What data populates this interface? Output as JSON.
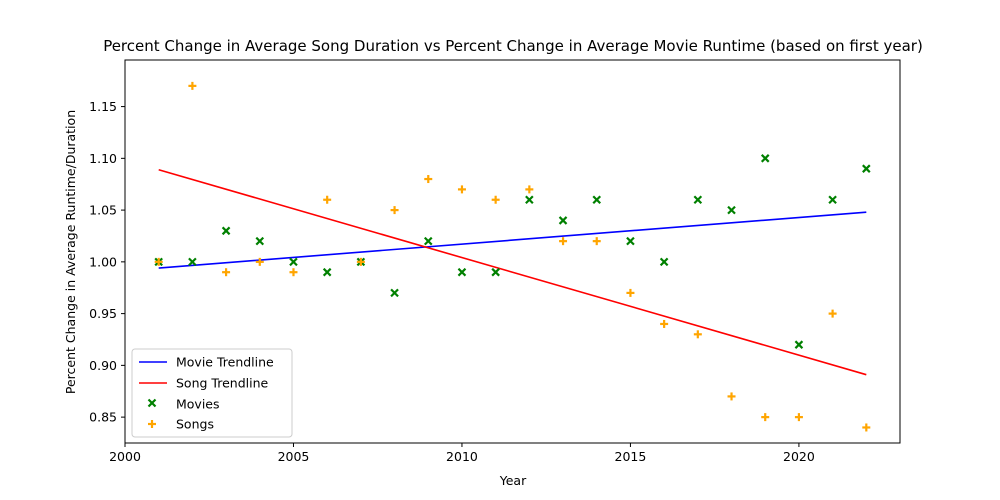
{
  "chart_data": {
    "type": "scatter",
    "title": "Percent Change in Average Song Duration vs Percent Change in Average Movie Runtime (based on first year)",
    "xlabel": "Year",
    "ylabel": "Percent Change in Average Runtime/Duration",
    "xlim": [
      2000,
      2023
    ],
    "ylim": [
      0.825,
      1.195
    ],
    "xticks": [
      2000,
      2005,
      2010,
      2015,
      2020
    ],
    "yticks": [
      0.85,
      0.9,
      0.95,
      1.0,
      1.05,
      1.1,
      1.15
    ],
    "grid": false,
    "legend_position": "lower-left",
    "x": [
      2001,
      2002,
      2003,
      2004,
      2005,
      2006,
      2007,
      2008,
      2009,
      2010,
      2011,
      2012,
      2013,
      2014,
      2015,
      2016,
      2017,
      2018,
      2019,
      2020,
      2021,
      2022
    ],
    "series": [
      {
        "name": "Movie Trendline",
        "kind": "line",
        "color": "#0000ff",
        "x": [
          2001,
          2022
        ],
        "values": [
          0.994,
          1.048
        ]
      },
      {
        "name": "Song Trendline",
        "kind": "line",
        "color": "#ff0000",
        "x": [
          2001,
          2022
        ],
        "values": [
          1.089,
          0.891
        ]
      },
      {
        "name": "Movies",
        "kind": "scatter",
        "marker": "x",
        "color": "#008000",
        "values": [
          1.0,
          1.0,
          1.03,
          1.02,
          1.0,
          0.99,
          1.0,
          0.97,
          1.02,
          0.99,
          0.99,
          1.06,
          1.04,
          1.06,
          1.02,
          1.0,
          1.06,
          1.05,
          1.1,
          0.92,
          1.06,
          1.09
        ]
      },
      {
        "name": "Songs",
        "kind": "scatter",
        "marker": "plus",
        "color": "#ffa500",
        "values": [
          1.0,
          1.17,
          0.99,
          1.0,
          0.99,
          1.06,
          1.0,
          1.05,
          1.08,
          1.07,
          1.06,
          1.07,
          1.02,
          1.02,
          0.97,
          0.94,
          0.93,
          0.87,
          0.85,
          0.85,
          0.95,
          0.84
        ]
      }
    ]
  }
}
